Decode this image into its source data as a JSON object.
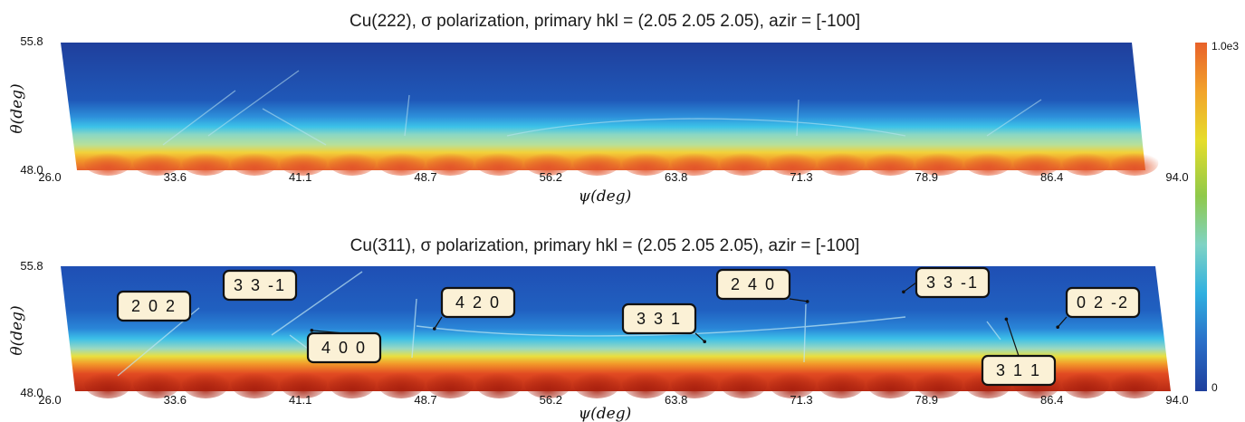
{
  "chart_data": [
    {
      "type": "heatmap",
      "title": "Cu(222), σ polarization, primary hkl = (2.05 2.05 2.05), azir = [-100]",
      "xlabel": "ψ(deg)",
      "ylabel": "θ(deg)",
      "xlim": [
        26.0,
        94.0
      ],
      "ylim": [
        48.0,
        55.8
      ],
      "x_ticks": [
        "26.0",
        "33.6",
        "41.1",
        "48.7",
        "56.2",
        "63.8",
        "71.3",
        "78.9",
        "86.4",
        "94.0"
      ],
      "y_ticks": [
        "48.0",
        "55.8"
      ],
      "annotations": []
    },
    {
      "type": "heatmap",
      "title": "Cu(311), σ polarization, primary hkl = (2.05 2.05 2.05), azir = [-100]",
      "xlabel": "ψ(deg)",
      "ylabel": "θ(deg)",
      "xlim": [
        26.0,
        94.0
      ],
      "ylim": [
        48.0,
        55.8
      ],
      "x_ticks": [
        "26.0",
        "33.6",
        "41.1",
        "48.7",
        "56.2",
        "63.8",
        "71.3",
        "78.9",
        "86.4",
        "94.0"
      ],
      "y_ticks": [
        "48.0",
        "55.8"
      ],
      "annotations": [
        {
          "label": "2 0 2",
          "x": 34.0,
          "y": 52.8
        },
        {
          "label": "3 3 -1",
          "x": 39.5,
          "y": 54.2
        },
        {
          "label": "4 0 0",
          "x": 41.8,
          "y": 51.8
        },
        {
          "label": "4 2 0",
          "x": 49.2,
          "y": 51.9
        },
        {
          "label": "3 3 1",
          "x": 65.5,
          "y": 51.1
        },
        {
          "label": "2 4 0",
          "x": 71.7,
          "y": 53.6
        },
        {
          "label": "3 3 -1",
          "x": 77.5,
          "y": 54.2
        },
        {
          "label": "0 2 -2",
          "x": 86.8,
          "y": 52.0
        },
        {
          "label": "3 1 1",
          "x": 83.7,
          "y": 52.5
        }
      ]
    }
  ],
  "colorbar": {
    "max_label": "1.0e3",
    "min_label": "0",
    "colors": [
      "#1f3f9c",
      "#2a7ed0",
      "#2fb0e0",
      "#7fd3c4",
      "#8fc94a",
      "#e6dd2a",
      "#f2a32a",
      "#e8612a"
    ]
  }
}
